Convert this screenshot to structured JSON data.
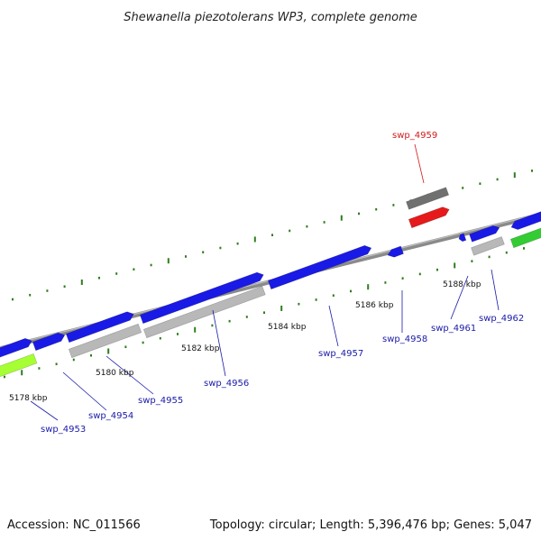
{
  "title": "Shewanella piezotolerans WP3, complete genome",
  "footer": {
    "accession": "Accession: NC_011566",
    "summary": "Topology: circular; Length: 5,396,476 bp; Genes: 5,047"
  },
  "colors": {
    "backbone": "#8a8a8a",
    "tick": "#2e7d1e",
    "forward_gene": "#1a1ae6",
    "reverse_gene": "#b8b8b8",
    "highlight_gene": "#e61a1a",
    "highlight_partner": "#707070",
    "green_gene": "#33cc33",
    "lime_gene": "#a6ff33",
    "label_default": "#1a1aa8",
    "label_highlight": "#d11a1a"
  },
  "kbp_labels": [
    "5178 kbp",
    "5180 kbp",
    "5182 kbp",
    "5184 kbp",
    "5186 kbp",
    "5188 kbp"
  ],
  "genes": [
    {
      "name": "swp_4953",
      "highlight": false
    },
    {
      "name": "swp_4954",
      "highlight": false
    },
    {
      "name": "swp_4955",
      "highlight": false
    },
    {
      "name": "swp_4956",
      "highlight": false
    },
    {
      "name": "swp_4957",
      "highlight": false
    },
    {
      "name": "swp_4958",
      "highlight": false
    },
    {
      "name": "swp_4959",
      "highlight": true
    },
    {
      "name": "swp_4961",
      "highlight": false
    },
    {
      "name": "swp_4962",
      "highlight": false
    }
  ]
}
